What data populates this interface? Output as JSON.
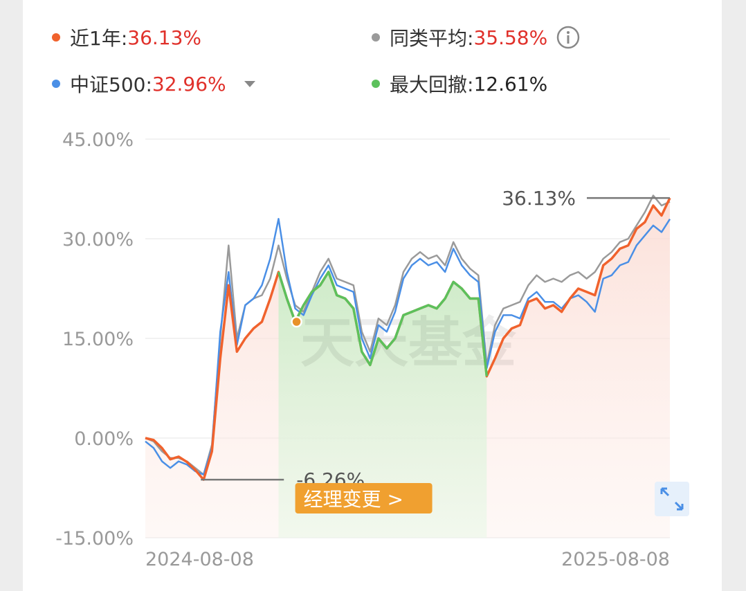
{
  "chart_data": {
    "type": "line",
    "categories": [
      "2024-08-08",
      null,
      null,
      null,
      null,
      null,
      null,
      null,
      null,
      null,
      null,
      null,
      null,
      null,
      null,
      null,
      null,
      null,
      null,
      null,
      null,
      null,
      null,
      null,
      null,
      null,
      null,
      null,
      null,
      null,
      null,
      null,
      null,
      null,
      null,
      null,
      null,
      null,
      null,
      null,
      null,
      null,
      null,
      null,
      null,
      null,
      null,
      null,
      null,
      null,
      null,
      null,
      null,
      null,
      null,
      null,
      null,
      null,
      null,
      null,
      null,
      null,
      null,
      "2025-08-08"
    ],
    "series": [
      {
        "name": "近1年:",
        "summary": "36.13%",
        "color": "#f0622d",
        "values": [
          0,
          -0.3,
          -1.5,
          -3.2,
          -2.8,
          -3.6,
          -4.8,
          -6.26,
          -2,
          12,
          23,
          13,
          15,
          16.5,
          17.5,
          21,
          25,
          21,
          17.5,
          20,
          22,
          23,
          25,
          21.5,
          21,
          19.5,
          13,
          11,
          15,
          13.5,
          15,
          18.5,
          19,
          19.5,
          20,
          19.5,
          21,
          23.5,
          22.5,
          21,
          21,
          9.3,
          12,
          15,
          16.5,
          17,
          20.5,
          21,
          19.5,
          20,
          19,
          21,
          22.5,
          22,
          21.5,
          26,
          27,
          28.5,
          29,
          31.5,
          32.5,
          35,
          33.5,
          36.13
        ]
      },
      {
        "name": "同类平均:",
        "summary": "35.58%",
        "color": "#9a9a9a",
        "values": [
          0,
          -0.5,
          -2,
          -3,
          -3,
          -3.5,
          -4.5,
          -5.5,
          -1,
          15,
          29,
          15,
          20,
          21,
          21.5,
          24,
          29,
          24,
          20,
          19,
          22,
          25,
          27,
          24,
          23.5,
          23,
          16,
          13,
          18,
          17,
          20,
          25,
          27,
          28,
          27,
          27.5,
          26,
          29.5,
          27,
          25.5,
          24.5,
          11,
          17,
          19.5,
          20,
          20.5,
          23,
          24.5,
          23.5,
          24,
          23.5,
          24.5,
          25,
          24,
          25,
          27,
          28,
          29.5,
          30,
          32,
          34,
          36.5,
          35,
          35.58
        ]
      },
      {
        "name": "中证500:",
        "summary": "32.96%",
        "color": "#4a8fe6",
        "values": [
          -0.5,
          -1.5,
          -3.5,
          -4.5,
          -3.5,
          -4,
          -5,
          -5.5,
          -1.5,
          16,
          25,
          14,
          20,
          21,
          23,
          27,
          33,
          25,
          19.5,
          18.5,
          21.5,
          24,
          26,
          23,
          22.5,
          22,
          15,
          12,
          17,
          16,
          19,
          24,
          26,
          27,
          26,
          26.5,
          25,
          28.5,
          26,
          24.5,
          23.5,
          10.5,
          16,
          18.5,
          18.5,
          18,
          21,
          22,
          20.5,
          20.5,
          19.5,
          21,
          21.5,
          20.5,
          19,
          24,
          24.5,
          26,
          26.5,
          29,
          30.5,
          32,
          31,
          32.96
        ]
      },
      {
        "name": "最大回撤:",
        "summary": "12.61%",
        "color": "#5cc15c",
        "values": [
          null,
          null,
          null,
          null,
          null,
          null,
          null,
          null,
          null,
          null,
          null,
          null,
          null,
          null,
          null,
          null,
          25,
          21,
          17.5,
          20,
          22,
          23,
          25,
          21.5,
          21,
          19.5,
          13,
          11,
          15,
          13.5,
          15,
          18.5,
          19,
          19.5,
          20,
          19.5,
          21,
          23.5,
          22.5,
          21,
          21,
          9.3,
          null,
          null,
          null,
          null,
          null,
          null,
          null,
          null,
          null,
          null,
          null,
          null,
          null,
          null,
          null,
          null,
          null,
          null,
          null,
          null,
          null,
          null
        ]
      }
    ],
    "ylim": [
      -15,
      45
    ],
    "yticks": [
      {
        "value": -15,
        "label": "-15.00%"
      },
      {
        "value": 0,
        "label": "0.00%"
      },
      {
        "value": 15,
        "label": "15.00%"
      },
      {
        "value": 30,
        "label": "30.00%"
      },
      {
        "value": 45,
        "label": "45.00%"
      }
    ],
    "grid": true,
    "max_label": "36.13%",
    "min_label": "-6.26%",
    "manager_change": {
      "label": "经理变更 >",
      "index": 18
    },
    "watermark": "天天基金"
  }
}
